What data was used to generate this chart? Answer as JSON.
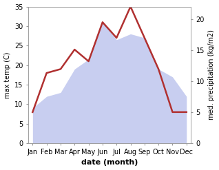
{
  "months": [
    "Jan",
    "Feb",
    "Mar",
    "Apr",
    "May",
    "Jun",
    "Jul",
    "Aug",
    "Sep",
    "Oct",
    "Nov",
    "Dec"
  ],
  "month_x": [
    0,
    1,
    2,
    3,
    4,
    5,
    6,
    7,
    8,
    9,
    10,
    11
  ],
  "temp": [
    8.0,
    18.0,
    19.0,
    24.0,
    21.0,
    31.0,
    27.0,
    35.0,
    27.0,
    19.0,
    8.0,
    8.0
  ],
  "precip": [
    9.0,
    12.0,
    13.0,
    19.0,
    21.5,
    31.0,
    26.5,
    28.0,
    27.0,
    19.0,
    17.0,
    12.0
  ],
  "temp_color": "#b03030",
  "precip_fill_color": "#c8cef0",
  "ylim_left": [
    0,
    35
  ],
  "ylim_right": [
    0,
    22
  ],
  "left_ticks": [
    0,
    5,
    10,
    15,
    20,
    25,
    30,
    35
  ],
  "right_ticks": [
    0,
    5,
    10,
    15,
    20
  ],
  "xlabel": "date (month)",
  "ylabel_left": "max temp (C)",
  "ylabel_right": "med. precipitation (kg/m2)",
  "bg_color": "#ffffff",
  "label_fontsize": 7,
  "axis_label_fontsize": 7,
  "temp_linewidth": 1.8,
  "precip_scale_factor": 1.59
}
